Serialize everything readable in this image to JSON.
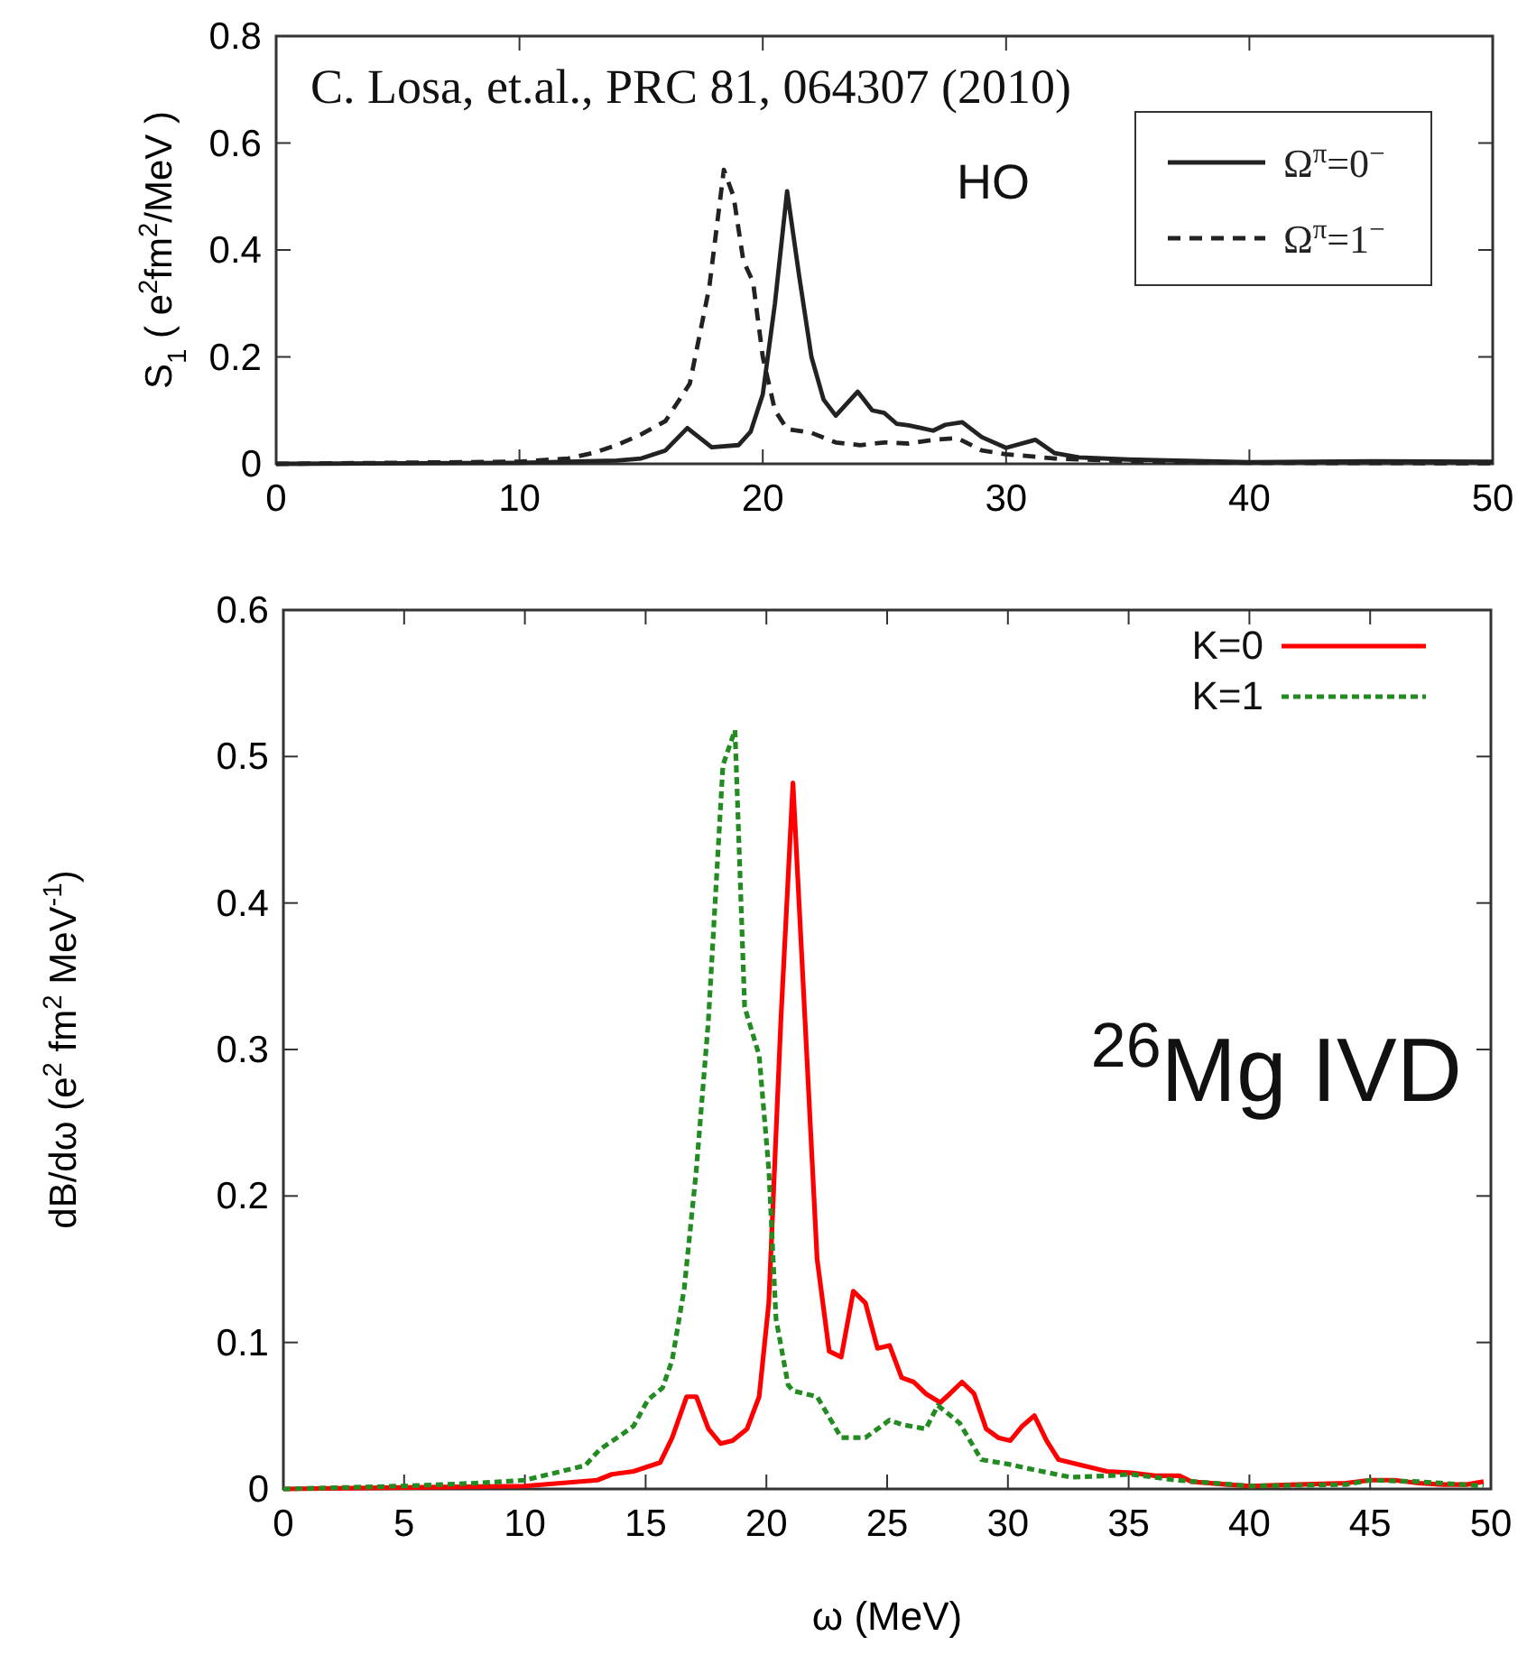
{
  "chart_data": [
    {
      "type": "line",
      "ylabel": "S$_{1}$ ( e$^{2}$fm$^{2}$/MeV )",
      "xlim": [
        0,
        50
      ],
      "ylim": [
        0,
        0.8
      ],
      "xticks": [
        0,
        10,
        20,
        30,
        40,
        50
      ],
      "yticks": [
        0,
        0.2,
        0.4,
        0.6,
        0.8
      ],
      "grid": false,
      "legend": "top right",
      "annotations": [
        "C. Losa, et.al., PRC 81, 064307 (2010)",
        "HO"
      ],
      "series": [
        {
          "name": "Ω$^{π}$=0$^{−}$",
          "color": "#222222",
          "line_style": "solid",
          "x": [
            0,
            10,
            14,
            15,
            16,
            16.9,
            17.9,
            19,
            19.5,
            20,
            20.5,
            21,
            21.5,
            22,
            22.5,
            23,
            23.9,
            24.5,
            25,
            25.5,
            26,
            27,
            27.5,
            28.2,
            29,
            30,
            31.2,
            32,
            33,
            35,
            37,
            40,
            45,
            50
          ],
          "values": [
            0,
            0.002,
            0.006,
            0.01,
            0.025,
            0.067,
            0.031,
            0.035,
            0.06,
            0.13,
            0.3,
            0.51,
            0.35,
            0.2,
            0.12,
            0.09,
            0.135,
            0.1,
            0.095,
            0.075,
            0.072,
            0.062,
            0.073,
            0.078,
            0.05,
            0.03,
            0.045,
            0.02,
            0.012,
            0.008,
            0.006,
            0.003,
            0.005,
            0.004
          ]
        },
        {
          "name": "Ω$^{π}$=1$^{−}$",
          "color": "#222222",
          "line_style": "dashed",
          "x": [
            0,
            10,
            12,
            13,
            14,
            15,
            16,
            17,
            17.8,
            18.4,
            18.8,
            19.2,
            19.6,
            20,
            20.5,
            21,
            22,
            23,
            24,
            25,
            26,
            27,
            28,
            29,
            30,
            32,
            35,
            40,
            50
          ],
          "values": [
            0,
            0.004,
            0.01,
            0.02,
            0.035,
            0.055,
            0.08,
            0.15,
            0.33,
            0.55,
            0.5,
            0.38,
            0.34,
            0.2,
            0.1,
            0.065,
            0.058,
            0.04,
            0.035,
            0.04,
            0.038,
            0.045,
            0.048,
            0.025,
            0.018,
            0.01,
            0.005,
            0.002,
            0.001
          ]
        }
      ]
    },
    {
      "type": "line",
      "xlabel": "ω (MeV)",
      "ylabel": "dB/dω (e$^{2}$ fm$^{2}$ MeV$^{-1}$)",
      "xlim": [
        0,
        50
      ],
      "ylim": [
        0,
        0.6
      ],
      "xticks": [
        0,
        5,
        10,
        15,
        20,
        25,
        30,
        35,
        40,
        45,
        50
      ],
      "yticks": [
        0,
        0.1,
        0.2,
        0.3,
        0.4,
        0.5,
        0.6
      ],
      "grid": false,
      "legend": "top right",
      "annotations": [
        "$^{26}$Mg IVD"
      ],
      "series": [
        {
          "name": "K=0",
          "color": "#ff0000",
          "line_style": "solid",
          "x": [
            0,
            5,
            10,
            13,
            13.6,
            14.5,
            15.6,
            16.1,
            16.7,
            17.1,
            17.6,
            18.1,
            18.6,
            19.2,
            19.7,
            20.1,
            20.6,
            21.1,
            21.6,
            22.1,
            22.6,
            23.1,
            23.6,
            24.1,
            24.6,
            25.1,
            25.6,
            26.1,
            26.6,
            27.2,
            27.6,
            28.1,
            28.6,
            29.1,
            29.6,
            30.1,
            30.6,
            31.1,
            31.6,
            32.1,
            33.1,
            34.1,
            35.1,
            36.1,
            37.1,
            37.6,
            39.1,
            40,
            42,
            44,
            45,
            46,
            47,
            48,
            49,
            49.7
          ],
          "values": [
            0,
            0.001,
            0.002,
            0.006,
            0.01,
            0.012,
            0.018,
            0.035,
            0.063,
            0.063,
            0.041,
            0.031,
            0.033,
            0.041,
            0.063,
            0.127,
            0.32,
            0.482,
            0.32,
            0.157,
            0.094,
            0.09,
            0.135,
            0.127,
            0.096,
            0.098,
            0.076,
            0.073,
            0.065,
            0.059,
            0.065,
            0.073,
            0.065,
            0.041,
            0.035,
            0.033,
            0.043,
            0.05,
            0.033,
            0.02,
            0.016,
            0.012,
            0.011,
            0.009,
            0.009,
            0.005,
            0.003,
            0.002,
            0.003,
            0.004,
            0.006,
            0.006,
            0.004,
            0.003,
            0.003,
            0.005
          ]
        },
        {
          "name": "K=1",
          "color": "#228b22",
          "line_style": "dotted",
          "x": [
            0,
            5,
            8,
            10,
            11.5,
            12.5,
            13.1,
            14,
            14.5,
            15.1,
            15.7,
            16.1,
            16.6,
            17.1,
            17.6,
            18.2,
            18.7,
            19.1,
            19.7,
            20.1,
            20.4,
            20.9,
            21.1,
            22.1,
            23.1,
            24.1,
            25.1,
            25.6,
            26.6,
            27.1,
            28,
            28.9,
            30,
            31.1,
            32.6,
            34.1,
            35.1,
            37,
            40,
            44,
            45,
            47,
            49.7
          ],
          "values": [
            0,
            0.002,
            0.004,
            0.006,
            0.012,
            0.016,
            0.027,
            0.037,
            0.043,
            0.061,
            0.069,
            0.088,
            0.137,
            0.218,
            0.32,
            0.494,
            0.518,
            0.329,
            0.296,
            0.218,
            0.116,
            0.071,
            0.067,
            0.063,
            0.035,
            0.035,
            0.047,
            0.044,
            0.041,
            0.057,
            0.045,
            0.02,
            0.017,
            0.013,
            0.008,
            0.009,
            0.01,
            0.006,
            0.002,
            0.003,
            0.006,
            0.005,
            0.002
          ]
        }
      ]
    }
  ]
}
